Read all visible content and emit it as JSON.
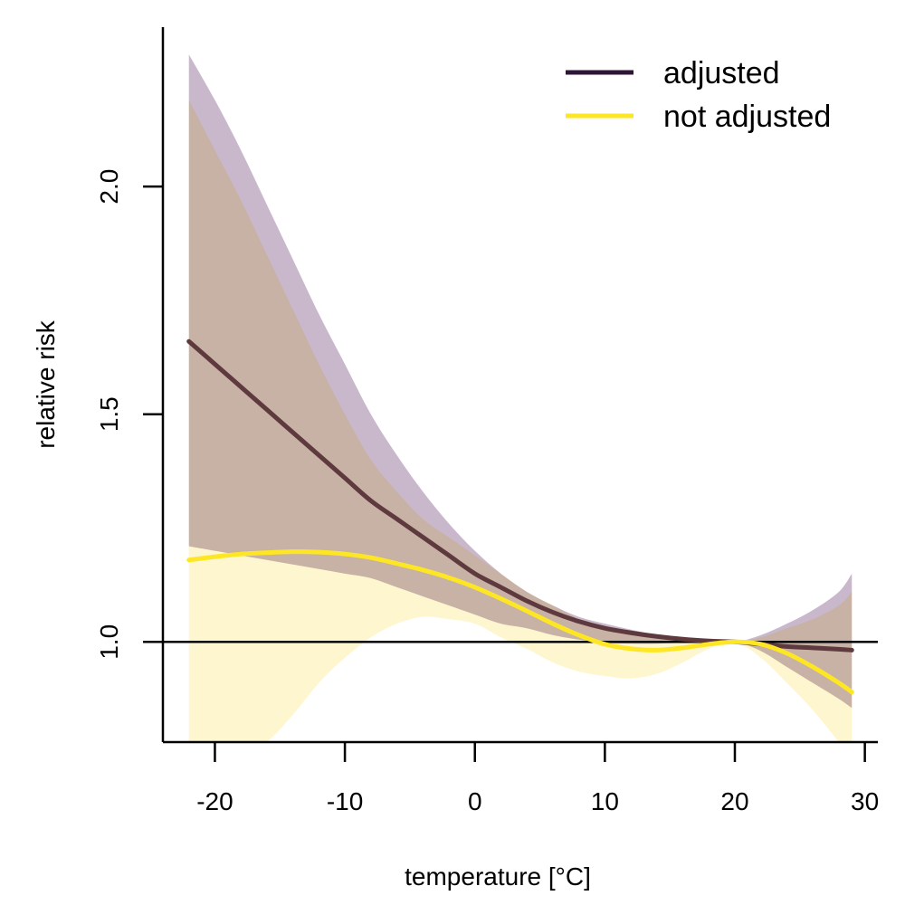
{
  "chart_data": {
    "type": "line",
    "title": "",
    "xlabel": "temperature [°C]",
    "ylabel": "relative risk",
    "xlim": [
      -24,
      31
    ],
    "ylim": [
      0.78,
      2.35
    ],
    "xticks": [
      -20,
      -10,
      0,
      10,
      20,
      30
    ],
    "xtick_labels": [
      "-20",
      "-10",
      "0",
      "10",
      "20",
      "30"
    ],
    "yticks": [
      1.0,
      1.5,
      2.0
    ],
    "ytick_labels": [
      "1.0",
      "1.5",
      "2.0"
    ],
    "reference_line": 1.0,
    "legend": {
      "position": "top-right"
    },
    "series": [
      {
        "name": "adjusted",
        "color": "#3b1f3f",
        "band_color": "#c9b8cc",
        "x": [
          -22,
          -20,
          -18,
          -16,
          -14,
          -12,
          -10,
          -8,
          -6,
          -4,
          -2,
          0,
          2,
          4,
          6,
          8,
          10,
          12,
          14,
          16,
          18,
          20,
          22,
          24,
          26,
          28,
          29
        ],
        "y": [
          1.66,
          1.61,
          1.56,
          1.51,
          1.46,
          1.41,
          1.36,
          1.31,
          1.27,
          1.23,
          1.19,
          1.15,
          1.12,
          1.09,
          1.065,
          1.045,
          1.03,
          1.02,
          1.012,
          1.006,
          1.002,
          1.0,
          0.995,
          0.99,
          0.987,
          0.984,
          0.982
        ],
        "lower": [
          1.21,
          1.2,
          1.19,
          1.18,
          1.17,
          1.16,
          1.15,
          1.14,
          1.12,
          1.1,
          1.08,
          1.06,
          1.04,
          1.03,
          1.015,
          1.005,
          0.998,
          0.996,
          0.996,
          0.998,
          0.999,
          1.0,
          0.98,
          0.945,
          0.91,
          0.875,
          0.855
        ],
        "upper": [
          2.29,
          2.19,
          2.08,
          1.96,
          1.84,
          1.72,
          1.61,
          1.5,
          1.41,
          1.33,
          1.26,
          1.2,
          1.15,
          1.11,
          1.08,
          1.055,
          1.04,
          1.027,
          1.016,
          1.01,
          1.004,
          1.0,
          1.015,
          1.04,
          1.07,
          1.11,
          1.15
        ]
      },
      {
        "name": "not adjusted",
        "color": "#fde725",
        "band_color": "#fdf3bd",
        "x": [
          -22,
          -20,
          -18,
          -16,
          -14,
          -12,
          -10,
          -8,
          -6,
          -4,
          -2,
          0,
          2,
          4,
          6,
          8,
          10,
          12,
          14,
          16,
          18,
          20,
          22,
          24,
          26,
          28,
          29
        ],
        "y": [
          1.18,
          1.187,
          1.193,
          1.196,
          1.198,
          1.197,
          1.193,
          1.185,
          1.172,
          1.158,
          1.141,
          1.12,
          1.095,
          1.068,
          1.04,
          1.015,
          0.995,
          0.985,
          0.982,
          0.987,
          0.995,
          1.0,
          0.995,
          0.975,
          0.945,
          0.91,
          0.89
        ],
        "lower": [
          0.78,
          0.76,
          0.745,
          0.78,
          0.84,
          0.91,
          0.965,
          1.01,
          1.04,
          1.055,
          1.05,
          1.04,
          1.01,
          0.985,
          0.955,
          0.935,
          0.925,
          0.92,
          0.93,
          0.955,
          0.985,
          1.0,
          0.965,
          0.91,
          0.85,
          0.78,
          0.74
        ],
        "upper": [
          2.19,
          2.08,
          1.97,
          1.85,
          1.73,
          1.61,
          1.5,
          1.4,
          1.33,
          1.27,
          1.23,
          1.19,
          1.15,
          1.11,
          1.08,
          1.05,
          1.03,
          1.02,
          1.01,
          1.004,
          1.001,
          1.0,
          1.01,
          1.03,
          1.05,
          1.08,
          1.11
        ]
      }
    ]
  }
}
